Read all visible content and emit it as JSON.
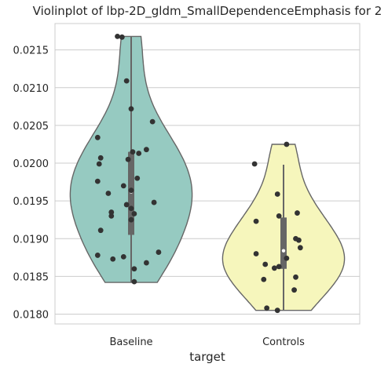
{
  "chart_data": {
    "type": "violin",
    "title": "Violinplot of lbp-2D_gldm_SmallDependenceEmphasis for 2",
    "xlabel": "target",
    "ylabel": "",
    "categories": [
      "Baseline",
      "Controls"
    ],
    "ylim": [
      0.01787,
      0.02185
    ],
    "yticks": [
      0.018,
      0.0185,
      0.019,
      0.0195,
      0.02,
      0.0205,
      0.021,
      0.0215
    ],
    "ytick_labels": [
      "0.0180",
      "0.0185",
      "0.0190",
      "0.0195",
      "0.0200",
      "0.0205",
      "0.0210",
      "0.0215"
    ],
    "grid": true,
    "colors": {
      "Baseline": "#96cac1",
      "Controls": "#f6f6bc",
      "outline": "#666666",
      "points": "#333333",
      "grid": "#cccccc"
    },
    "series": [
      {
        "category": "Baseline",
        "range": [
          0.01842,
          0.02168
        ],
        "quartiles": [
          0.01905,
          0.01962,
          0.02015
        ],
        "whiskers": [
          0.01842,
          0.02168
        ],
        "points": [
          [
            -0.09,
            0.02168
          ],
          [
            -0.06,
            0.02167
          ],
          [
            -0.03,
            0.02109
          ],
          [
            0.0,
            0.02072
          ],
          [
            0.14,
            0.02055
          ],
          [
            -0.22,
            0.02034
          ],
          [
            0.1,
            0.02018
          ],
          [
            0.01,
            0.02015
          ],
          [
            0.05,
            0.02013
          ],
          [
            -0.2,
            0.02007
          ],
          [
            -0.02,
            0.02005
          ],
          [
            -0.21,
            0.01999
          ],
          [
            0.04,
            0.0198
          ],
          [
            -0.22,
            0.01976
          ],
          [
            -0.05,
            0.0197
          ],
          [
            0.0,
            0.01964
          ],
          [
            -0.15,
            0.0196
          ],
          [
            0.15,
            0.01948
          ],
          [
            -0.03,
            0.01945
          ],
          [
            0.0,
            0.0194
          ],
          [
            -0.13,
            0.01935
          ],
          [
            0.02,
            0.01933
          ],
          [
            -0.13,
            0.0193
          ],
          [
            0.0,
            0.01925
          ],
          [
            -0.2,
            0.01911
          ],
          [
            0.18,
            0.01882
          ],
          [
            -0.22,
            0.01878
          ],
          [
            -0.05,
            0.01876
          ],
          [
            -0.12,
            0.01873
          ],
          [
            0.1,
            0.01868
          ],
          [
            0.02,
            0.0186
          ],
          [
            0.02,
            0.01843
          ]
        ]
      },
      {
        "category": "Controls",
        "range": [
          0.01805,
          0.02025
        ],
        "quartiles": [
          0.0186,
          0.01884,
          0.01928
        ],
        "whiskers": [
          0.01805,
          0.01998
        ],
        "points": [
          [
            0.02,
            0.02025
          ],
          [
            -0.19,
            0.01999
          ],
          [
            -0.04,
            0.01959
          ],
          [
            0.09,
            0.01934
          ],
          [
            -0.03,
            0.0193
          ],
          [
            -0.18,
            0.01923
          ],
          [
            0.08,
            0.019
          ],
          [
            0.1,
            0.01898
          ],
          [
            0.11,
            0.01888
          ],
          [
            -0.18,
            0.0188
          ],
          [
            0.02,
            0.01874
          ],
          [
            -0.12,
            0.01866
          ],
          [
            -0.03,
            0.01863
          ],
          [
            -0.06,
            0.01861
          ],
          [
            0.08,
            0.01849
          ],
          [
            -0.13,
            0.01846
          ],
          [
            0.07,
            0.01832
          ],
          [
            -0.11,
            0.01808
          ],
          [
            -0.04,
            0.01805
          ]
        ]
      }
    ]
  }
}
